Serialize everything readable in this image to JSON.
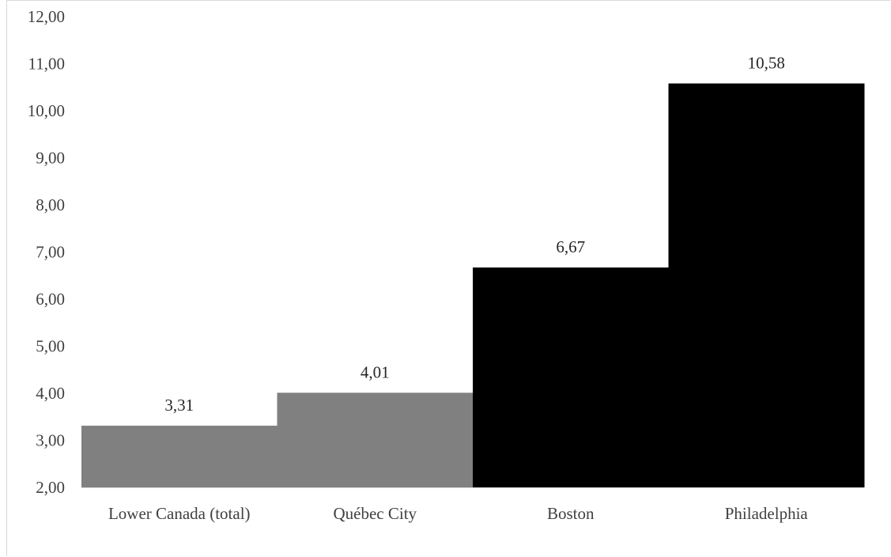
{
  "chart_data": {
    "type": "bar",
    "categories": [
      "Lower Canada (total)",
      "Québec City",
      "Boston",
      "Philadelphia"
    ],
    "values": [
      3.31,
      4.01,
      6.67,
      10.58
    ],
    "data_labels": [
      "3,31",
      "4,01",
      "6,67",
      "10,58"
    ],
    "bar_colors": [
      "#808080",
      "#808080",
      "#000000",
      "#000000"
    ],
    "title": "",
    "xlabel": "",
    "ylabel": "",
    "ylim": [
      2,
      12
    ],
    "y_ticks": [
      2,
      3,
      4,
      5,
      6,
      7,
      8,
      9,
      10,
      11,
      12
    ],
    "y_tick_labels": [
      "2,00",
      "3,00",
      "4,00",
      "5,00",
      "6,00",
      "7,00",
      "8,00",
      "9,00",
      "10,00",
      "11,00",
      "12,00"
    ],
    "grid": false,
    "legend": "none",
    "bar_gap": "none"
  },
  "colors": {
    "axis": "#d9d9d9",
    "text": "#404040"
  }
}
